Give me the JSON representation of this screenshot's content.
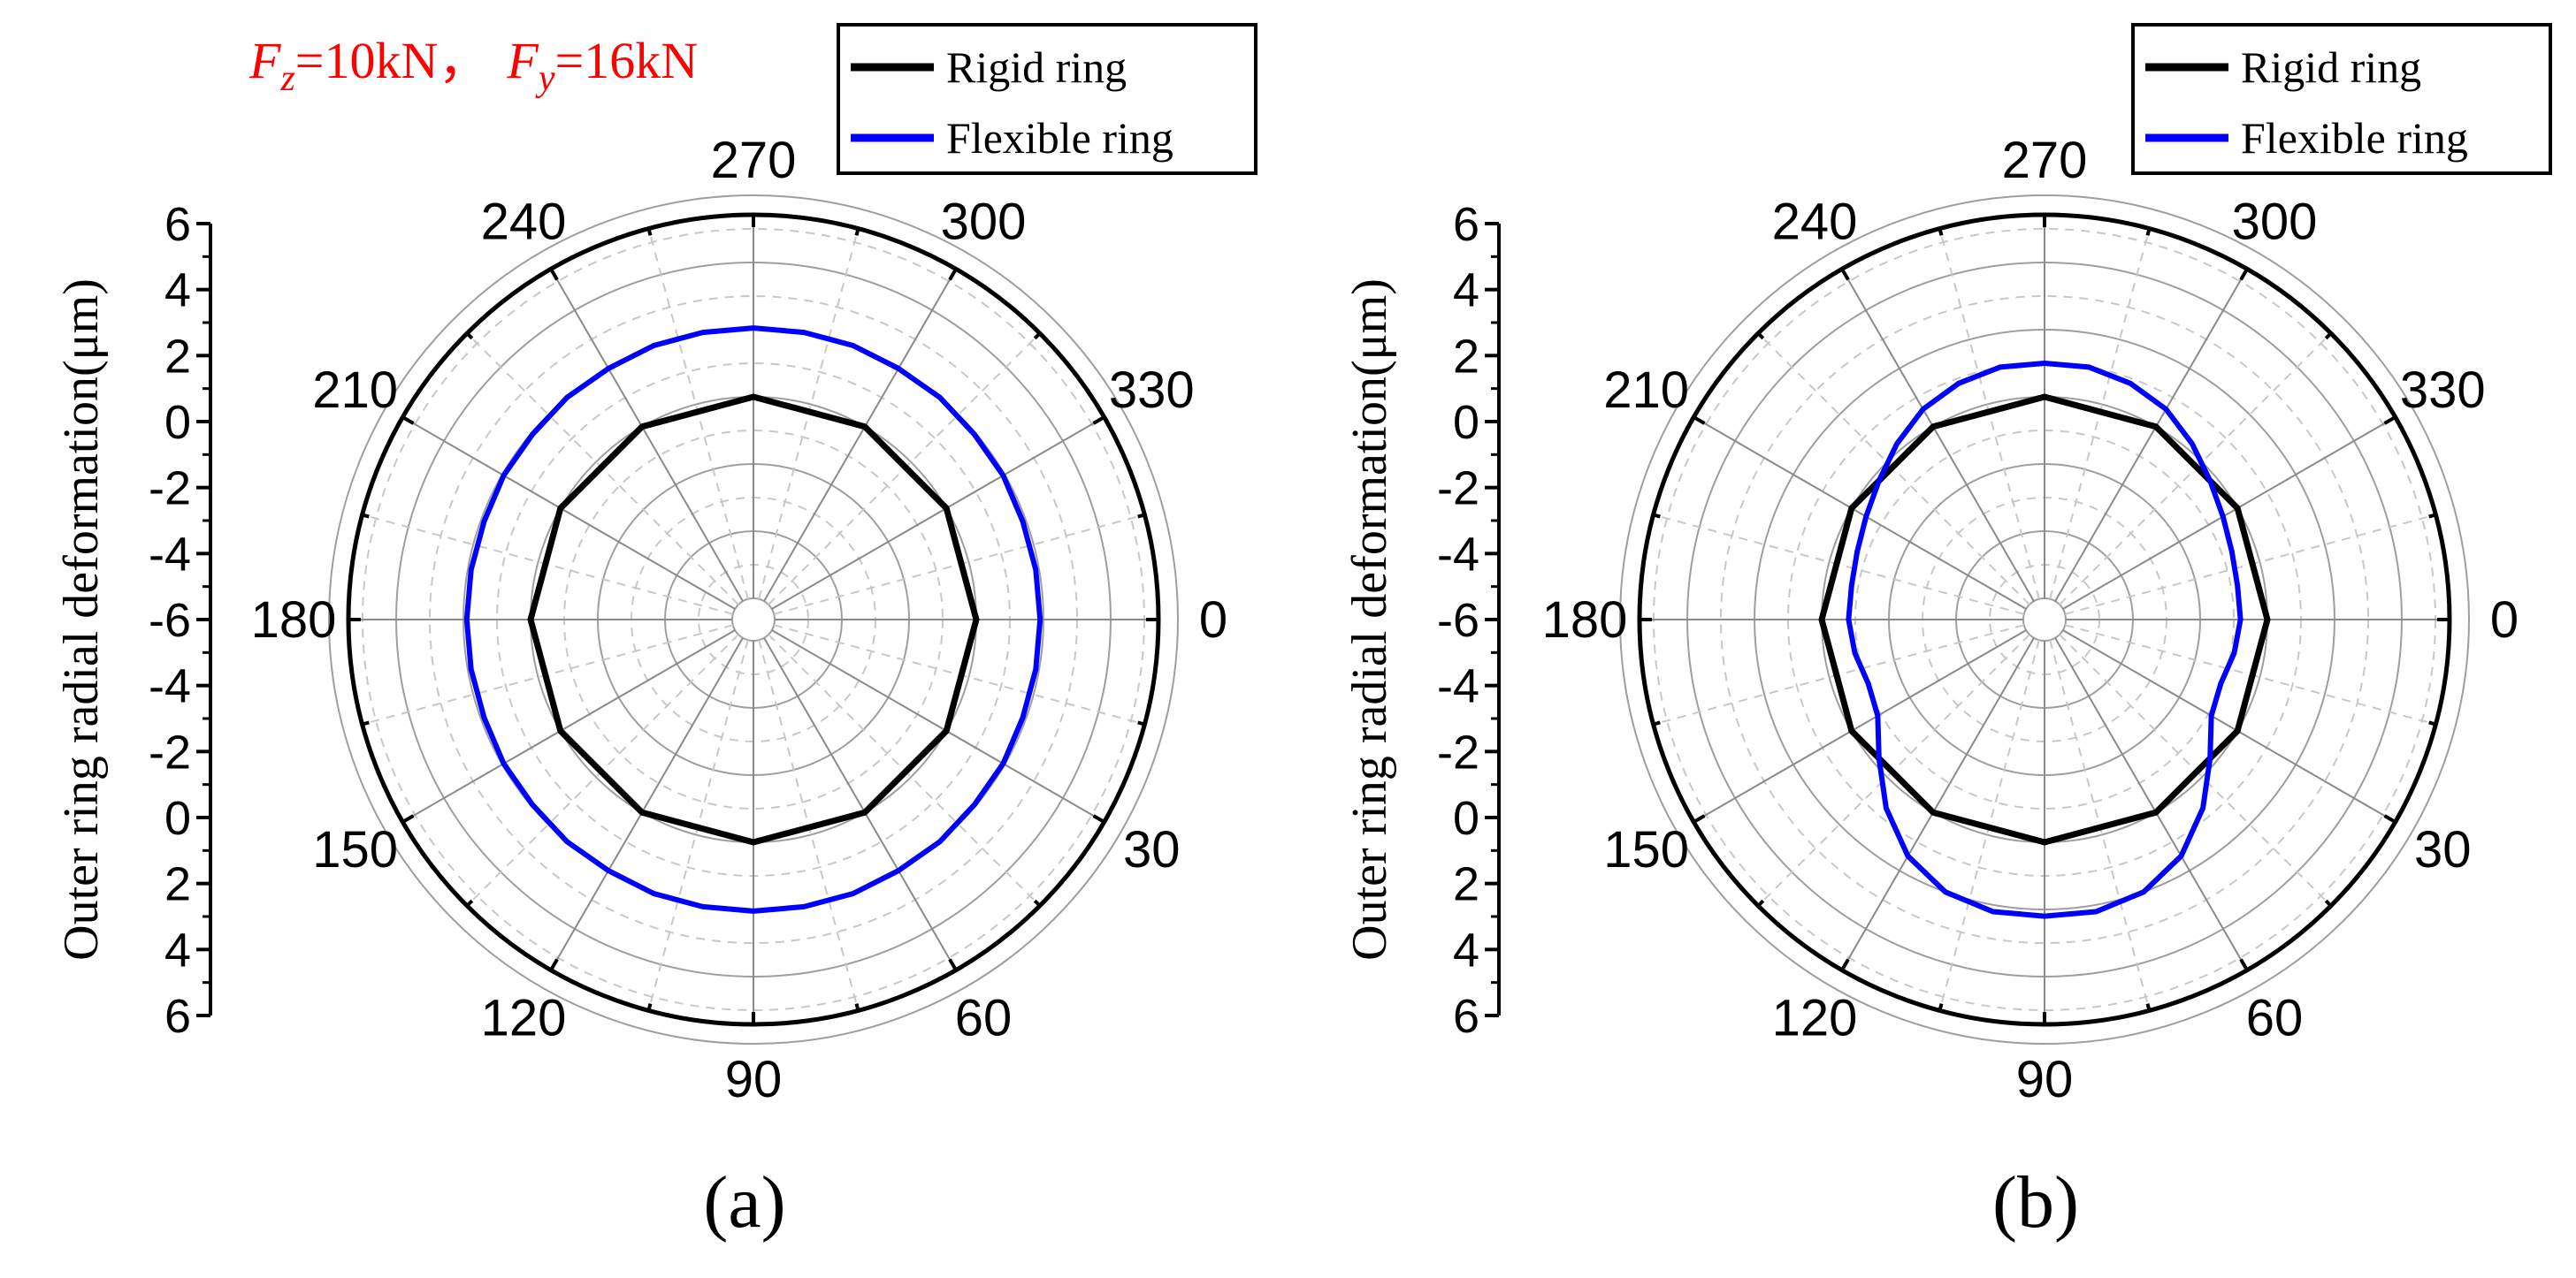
{
  "annotation": {
    "fz_symbol": "F",
    "fz_sub": "z",
    "fz_value": "=10kN，",
    "fy_symbol": "F",
    "fy_sub": "y",
    "fy_value": "=16kN",
    "color": "#ff0000"
  },
  "colors": {
    "rigid": "#000000",
    "flexible": "#0000ff",
    "grid": "#bdbdbd"
  },
  "chart_data": [
    {
      "type": "line",
      "projection": "polar",
      "panel_label": "(a)",
      "ylabel": "Outer ring radial deformation(μm)",
      "radial_axis_ticks": [
        "6",
        "4",
        "2",
        "0",
        "-2",
        "-4",
        "-6",
        "-4",
        "-2",
        "0",
        "2",
        "4",
        "6"
      ],
      "radial_range": [
        -6,
        6
      ],
      "angle_ticks": [
        "0",
        "30",
        "60",
        "90",
        "120",
        "150",
        "180",
        "210",
        "240",
        "270",
        "300",
        "330"
      ],
      "angle_direction": "clockwise, 0 at right, 90 at bottom",
      "grid": true,
      "legend_position": "top-right",
      "series": [
        {
          "name": "Rigid ring",
          "color": "#000000",
          "theta": [
            0,
            30,
            60,
            90,
            120,
            150,
            180,
            210,
            240,
            270,
            300,
            330,
            360
          ],
          "r": [
            0,
            0,
            0,
            0,
            0,
            0,
            0,
            0,
            0,
            0,
            0,
            0,
            0
          ]
        },
        {
          "name": "Flexible ring",
          "color": "#0000ff",
          "theta": [
            0,
            10,
            20,
            30,
            40,
            50,
            60,
            70,
            80,
            90,
            100,
            110,
            120,
            130,
            140,
            150,
            160,
            170,
            180,
            190,
            200,
            210,
            220,
            230,
            240,
            250,
            260,
            270,
            280,
            290,
            300,
            310,
            320,
            330,
            340,
            350,
            360
          ],
          "r": [
            1.9,
            1.9,
            1.9,
            1.95,
            1.95,
            2.0,
            2.0,
            2.05,
            2.05,
            2.05,
            2.05,
            2.05,
            2.0,
            2.0,
            1.95,
            1.95,
            1.9,
            1.9,
            1.9,
            1.9,
            1.9,
            1.95,
            1.95,
            2.0,
            2.0,
            2.05,
            2.05,
            2.05,
            2.05,
            2.05,
            2.0,
            2.0,
            1.95,
            1.95,
            1.9,
            1.9,
            1.9
          ]
        }
      ]
    },
    {
      "type": "line",
      "projection": "polar",
      "panel_label": "(b)",
      "ylabel": "Outer ring radial deformation(μm)",
      "radial_axis_ticks": [
        "6",
        "4",
        "2",
        "0",
        "-2",
        "-4",
        "-6",
        "-4",
        "-2",
        "0",
        "2",
        "4",
        "6"
      ],
      "radial_range": [
        -6,
        6
      ],
      "angle_ticks": [
        "0",
        "30",
        "60",
        "90",
        "120",
        "150",
        "180",
        "210",
        "240",
        "270",
        "300",
        "330"
      ],
      "angle_direction": "clockwise, 0 at right, 90 at bottom",
      "grid": true,
      "legend_position": "top-right",
      "series": [
        {
          "name": "Rigid ring",
          "color": "#000000",
          "theta": [
            0,
            30,
            60,
            90,
            120,
            150,
            180,
            210,
            240,
            270,
            300,
            330,
            360
          ],
          "r": [
            0,
            0,
            0,
            0,
            0,
            0,
            0,
            0,
            0,
            0,
            0,
            0,
            0
          ]
        },
        {
          "name": "Flexible ring",
          "color": "#0000ff",
          "theta": [
            0,
            10,
            20,
            30,
            40,
            50,
            60,
            70,
            80,
            90,
            100,
            110,
            120,
            130,
            140,
            150,
            160,
            170,
            180,
            190,
            200,
            210,
            220,
            230,
            240,
            250,
            260,
            270,
            280,
            290,
            300,
            310,
            320,
            330,
            340,
            350,
            360
          ],
          "r": [
            -0.8,
            -0.9,
            -1.05,
            -0.9,
            -0.2,
            0.7,
            1.5,
            2.0,
            2.2,
            2.2,
            2.2,
            2.0,
            1.5,
            0.7,
            -0.2,
            -0.9,
            -1.05,
            -0.9,
            -0.8,
            -0.8,
            -0.7,
            -0.5,
            -0.2,
            0.2,
            0.6,
            0.85,
            1.0,
            1.0,
            1.0,
            0.85,
            0.6,
            0.2,
            -0.2,
            -0.5,
            -0.7,
            -0.8,
            -0.8
          ]
        }
      ]
    }
  ]
}
